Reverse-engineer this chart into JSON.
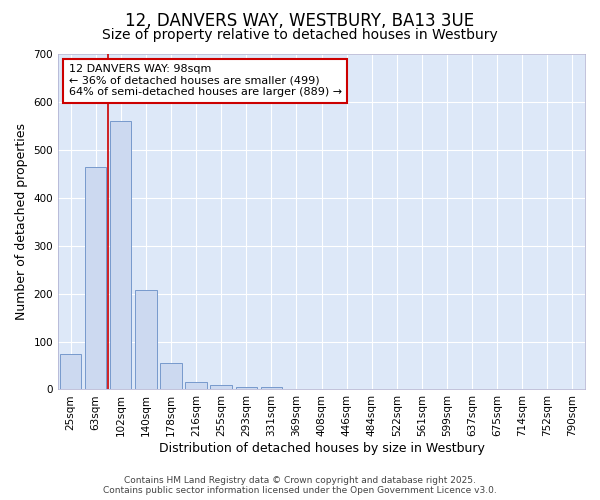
{
  "title_line1": "12, DANVERS WAY, WESTBURY, BA13 3UE",
  "title_line2": "Size of property relative to detached houses in Westbury",
  "xlabel": "Distribution of detached houses by size in Westbury",
  "ylabel": "Number of detached properties",
  "categories": [
    "25sqm",
    "63sqm",
    "102sqm",
    "140sqm",
    "178sqm",
    "216sqm",
    "255sqm",
    "293sqm",
    "331sqm",
    "369sqm",
    "408sqm",
    "446sqm",
    "484sqm",
    "522sqm",
    "561sqm",
    "599sqm",
    "637sqm",
    "675sqm",
    "714sqm",
    "752sqm",
    "790sqm"
  ],
  "values": [
    75,
    465,
    560,
    207,
    55,
    15,
    10,
    5,
    5,
    0,
    0,
    0,
    0,
    0,
    0,
    0,
    0,
    0,
    0,
    0,
    0
  ],
  "bar_color": "#ccd9f0",
  "bar_edge_color": "#7799cc",
  "vline_color": "#cc0000",
  "vline_x": 1.5,
  "annotation_text_line1": "12 DANVERS WAY: 98sqm",
  "annotation_text_line2": "← 36% of detached houses are smaller (499)",
  "annotation_text_line3": "64% of semi-detached houses are larger (889) →",
  "annotation_box_color": "#cc0000",
  "ylim": [
    0,
    700
  ],
  "yticks": [
    0,
    100,
    200,
    300,
    400,
    500,
    600,
    700
  ],
  "plot_bg_color": "#dde8f8",
  "figure_bg_color": "#ffffff",
  "grid_color": "#ffffff",
  "footer_line1": "Contains HM Land Registry data © Crown copyright and database right 2025.",
  "footer_line2": "Contains public sector information licensed under the Open Government Licence v3.0.",
  "title_fontsize": 12,
  "subtitle_fontsize": 10,
  "axis_label_fontsize": 9,
  "tick_fontsize": 7.5,
  "annotation_fontsize": 8,
  "footer_fontsize": 6.5
}
